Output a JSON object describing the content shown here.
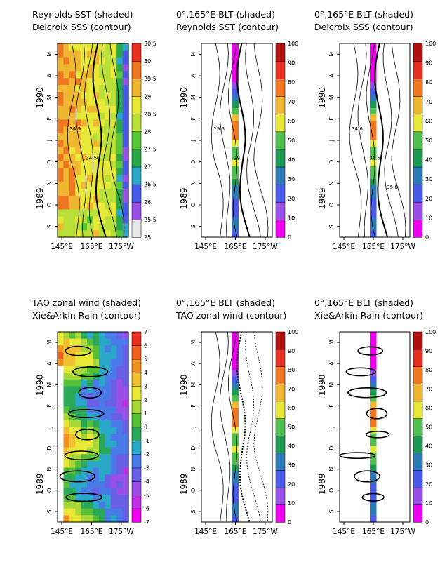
{
  "chart_data": [
    {
      "type": "heatmap",
      "title": "Reynolds SST (shaded)",
      "subtitle": "Delcroix SSS (contour)",
      "x_ticks": [
        "145°E",
        "165°E",
        "175°W"
      ],
      "y_month_ticks": [
        "S",
        "O",
        "N",
        "D",
        "J",
        "F",
        "M",
        "A",
        "M"
      ],
      "y_year_labels": [
        "1989",
        "1990"
      ],
      "colorbar_ticks": [
        "25",
        "25.5",
        "26",
        "26.5",
        "27",
        "27.5",
        "28",
        "28.5",
        "29",
        "29.5",
        "30",
        "30.5"
      ],
      "colorbar_colors": [
        "#e8e8e8",
        "#9a50e8",
        "#4a5ae8",
        "#2aa8c8",
        "#28a848",
        "#58c838",
        "#b8e038",
        "#e8e838",
        "#f0b830",
        "#f07820",
        "#e83020"
      ],
      "field_kind": "sst",
      "contour_labels": [
        "34.9",
        "34.50"
      ]
    },
    {
      "type": "heatmap",
      "title": "0°,165°E  BLT (shaded)",
      "subtitle": "Reynolds SST (contour)",
      "x_ticks": [
        "145°E",
        "165°E",
        "175°W"
      ],
      "y_month_ticks": [
        "S",
        "O",
        "N",
        "D",
        "J",
        "F",
        "M",
        "A",
        "M"
      ],
      "y_year_labels": [
        "1989",
        "1990"
      ],
      "colorbar_ticks": [
        "0",
        "10",
        "20",
        "30",
        "40",
        "50",
        "60",
        "70",
        "80",
        "90",
        "100"
      ],
      "colorbar_colors": [
        "#ee00ee",
        "#9a50e8",
        "#4a5ae8",
        "#2a7ab8",
        "#1a9a50",
        "#50c050",
        "#e8e838",
        "#f0b830",
        "#f07820",
        "#e83020",
        "#b01010"
      ],
      "field_kind": "strip",
      "contour_labels": [
        "29.5",
        "29"
      ]
    },
    {
      "type": "heatmap",
      "title": "0°,165°E  BLT (shaded)",
      "subtitle": "Delcroix SSS (contour)",
      "x_ticks": [
        "145°E",
        "165°E",
        "175°W"
      ],
      "y_month_ticks": [
        "S",
        "O",
        "N",
        "D",
        "J",
        "F",
        "M",
        "A",
        "M"
      ],
      "y_year_labels": [
        "1989",
        "1990"
      ],
      "colorbar_ticks": [
        "0",
        "10",
        "20",
        "30",
        "40",
        "50",
        "60",
        "70",
        "80",
        "90",
        "100"
      ],
      "colorbar_colors": [
        "#ee00ee",
        "#9a50e8",
        "#4a5ae8",
        "#2a7ab8",
        "#1a9a50",
        "#50c050",
        "#e8e838",
        "#f0b830",
        "#f07820",
        "#e83020",
        "#b01010"
      ],
      "field_kind": "strip",
      "contour_labels": [
        "34.6",
        "34.5",
        "35.8"
      ]
    },
    {
      "type": "heatmap",
      "title": "TAO zonal wind (shaded)",
      "subtitle": "Xie&Arkin Rain (contour)",
      "x_ticks": [
        "145°E",
        "165°E",
        "175°W"
      ],
      "y_month_ticks": [
        "S",
        "O",
        "N",
        "D",
        "J",
        "F",
        "M",
        "A",
        "M"
      ],
      "y_year_labels": [
        "1989",
        "1990"
      ],
      "colorbar_ticks": [
        "-7",
        "-6",
        "-5",
        "-4",
        "-3",
        "-2",
        "-1",
        "0",
        "1",
        "2",
        "3",
        "4",
        "5",
        "6",
        "7"
      ],
      "colorbar_colors": [
        "#ee00ee",
        "#c030e8",
        "#9a50e8",
        "#6a60e8",
        "#4a7ae8",
        "#2aa8c8",
        "#28a858",
        "#58c038",
        "#a8d838",
        "#e8e838",
        "#f0c030",
        "#f09020",
        "#f06020",
        "#e83020"
      ],
      "field_kind": "wind",
      "contour_labels": []
    },
    {
      "type": "heatmap",
      "title": "0°,165°E  BLT (shaded)",
      "subtitle": "TAO zonal wind (contour)",
      "x_ticks": [
        "145°E",
        "165°E",
        "175°W"
      ],
      "y_month_ticks": [
        "S",
        "O",
        "N",
        "D",
        "J",
        "F",
        "M",
        "A",
        "M"
      ],
      "y_year_labels": [
        "1989",
        "1990"
      ],
      "colorbar_ticks": [
        "0",
        "10",
        "20",
        "30",
        "40",
        "50",
        "60",
        "70",
        "80",
        "90",
        "100"
      ],
      "colorbar_colors": [
        "#ee00ee",
        "#9a50e8",
        "#4a5ae8",
        "#2a7ab8",
        "#1a9a50",
        "#50c050",
        "#e8e838",
        "#f0b830",
        "#f07820",
        "#e83020",
        "#b01010"
      ],
      "field_kind": "strip",
      "contour_labels": []
    },
    {
      "type": "heatmap",
      "title": "0°,165°E  BLT (shaded)",
      "subtitle": "Xie&Arkin Rain (contour)",
      "x_ticks": [
        "145°E",
        "165°E",
        "175°W"
      ],
      "y_month_ticks": [
        "S",
        "O",
        "N",
        "D",
        "J",
        "F",
        "M",
        "A",
        "M"
      ],
      "y_year_labels": [
        "1989",
        "1990"
      ],
      "colorbar_ticks": [
        "0",
        "10",
        "20",
        "30",
        "40",
        "50",
        "60",
        "70",
        "80",
        "90",
        "100"
      ],
      "colorbar_colors": [
        "#ee00ee",
        "#9a50e8",
        "#4a5ae8",
        "#2a7ab8",
        "#1a9a50",
        "#50c050",
        "#e8e838",
        "#f0b830",
        "#f07820",
        "#e83020",
        "#b01010"
      ],
      "field_kind": "strip",
      "contour_labels": []
    }
  ],
  "blt_strip": [
    0,
    0,
    0,
    0,
    0,
    5,
    15,
    25,
    30,
    45,
    55,
    75,
    85,
    85,
    80,
    60,
    50,
    55,
    60,
    55,
    50,
    45,
    35,
    30,
    25,
    20,
    25,
    30,
    35,
    25
  ]
}
